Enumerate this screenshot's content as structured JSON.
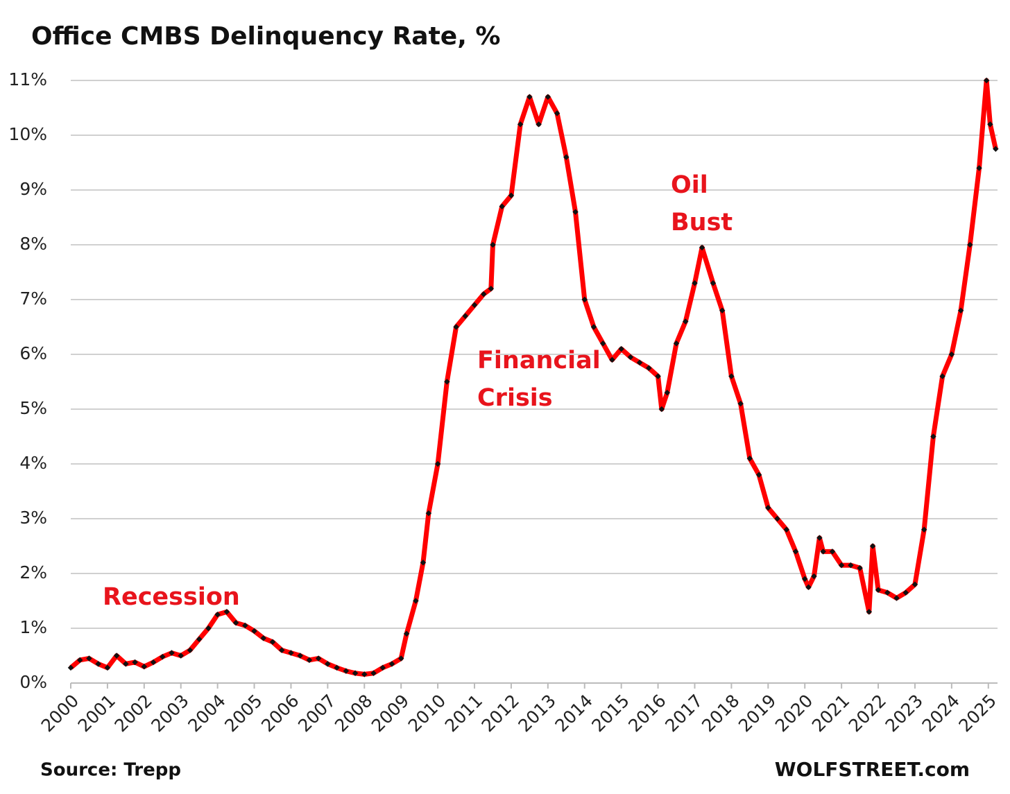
{
  "chart_data": {
    "type": "line",
    "title": "Office CMBS Delinquency Rate, %",
    "source": "Source: Trepp",
    "watermark": "WOLFSTREET.com",
    "annotations": [
      {
        "lines": [
          "Recession"
        ]
      },
      {
        "lines": [
          "Financial",
          "Crisis"
        ]
      },
      {
        "lines": [
          "Oil",
          "Bust"
        ]
      }
    ],
    "xlim": [
      2000,
      2025.25
    ],
    "xticks": [
      2000,
      2001,
      2002,
      2003,
      2004,
      2005,
      2006,
      2007,
      2008,
      2009,
      2010,
      2011,
      2012,
      2013,
      2014,
      2015,
      2016,
      2017,
      2018,
      2019,
      2020,
      2021,
      2022,
      2023,
      2024,
      2025
    ],
    "ylim": [
      0,
      11
    ],
    "yticks": [
      {
        "value": 0,
        "label": "0%"
      },
      {
        "value": 1,
        "label": "1%"
      },
      {
        "value": 2,
        "label": "2%"
      },
      {
        "value": 3,
        "label": "3%"
      },
      {
        "value": 4,
        "label": "4%"
      },
      {
        "value": 5,
        "label": "5%"
      },
      {
        "value": 6,
        "label": "6%"
      },
      {
        "value": 7,
        "label": "7%"
      },
      {
        "value": 8,
        "label": "8%"
      },
      {
        "value": 9,
        "label": "9%"
      },
      {
        "value": 10,
        "label": "10%"
      },
      {
        "value": 11,
        "label": "11%"
      }
    ],
    "grid": true,
    "x": [
      2000,
      2000.25,
      2000.5,
      2000.75,
      2001,
      2001.25,
      2001.5,
      2001.75,
      2002,
      2002.25,
      2002.5,
      2002.75,
      2003,
      2003.25,
      2003.5,
      2003.75,
      2004,
      2004.25,
      2004.5,
      2004.75,
      2005,
      2005.25,
      2005.5,
      2005.75,
      2006,
      2006.25,
      2006.5,
      2006.75,
      2007,
      2007.25,
      2007.5,
      2007.75,
      2008,
      2008.25,
      2008.5,
      2008.75,
      2009,
      2009.15,
      2009.4,
      2009.6,
      2009.75,
      2010,
      2010.25,
      2010.5,
      2010.75,
      2011,
      2011.25,
      2011.45,
      2011.5,
      2011.75,
      2012,
      2012.25,
      2012.5,
      2012.75,
      2013,
      2013.25,
      2013.5,
      2013.75,
      2014,
      2014.25,
      2014.5,
      2014.75,
      2015,
      2015.25,
      2015.5,
      2015.75,
      2016,
      2016.1,
      2016.25,
      2016.5,
      2016.75,
      2017,
      2017.2,
      2017.5,
      2017.75,
      2018,
      2018.25,
      2018.5,
      2018.75,
      2019,
      2019.25,
      2019.5,
      2019.75,
      2020,
      2020.1,
      2020.25,
      2020.4,
      2020.5,
      2020.75,
      2021,
      2021.25,
      2021.5,
      2021.75,
      2021.85,
      2022,
      2022.25,
      2022.5,
      2022.75,
      2023,
      2023.25,
      2023.5,
      2023.75,
      2024,
      2024.25,
      2024.5,
      2024.75,
      2024.95,
      2025.05,
      2025.2
    ],
    "series": [
      {
        "name": "Office CMBS Delinquency Rate",
        "color": "#ff0000",
        "values": [
          0.28,
          0.42,
          0.45,
          0.35,
          0.28,
          0.5,
          0.35,
          0.38,
          0.3,
          0.38,
          0.48,
          0.55,
          0.5,
          0.6,
          0.8,
          1.0,
          1.25,
          1.3,
          1.1,
          1.05,
          0.95,
          0.82,
          0.75,
          0.6,
          0.55,
          0.5,
          0.42,
          0.45,
          0.35,
          0.28,
          0.22,
          0.18,
          0.16,
          0.18,
          0.28,
          0.35,
          0.45,
          0.9,
          1.5,
          2.2,
          3.1,
          4.0,
          5.5,
          6.5,
          6.7,
          6.9,
          7.1,
          7.2,
          8.0,
          8.7,
          8.9,
          10.2,
          10.7,
          10.2,
          10.7,
          10.4,
          9.6,
          8.6,
          7.0,
          6.5,
          6.2,
          5.9,
          6.1,
          5.95,
          5.85,
          5.75,
          5.6,
          5.0,
          5.3,
          6.2,
          6.6,
          7.3,
          7.95,
          7.3,
          6.8,
          5.6,
          5.1,
          4.1,
          3.8,
          3.2,
          3.0,
          2.8,
          2.4,
          1.9,
          1.75,
          1.95,
          2.65,
          2.4,
          2.4,
          2.15,
          2.15,
          2.1,
          1.3,
          2.5,
          1.7,
          1.65,
          1.55,
          1.65,
          1.8,
          2.8,
          4.5,
          5.6,
          6.0,
          6.8,
          8.0,
          9.4,
          11.0,
          10.2,
          9.75
        ]
      }
    ]
  }
}
